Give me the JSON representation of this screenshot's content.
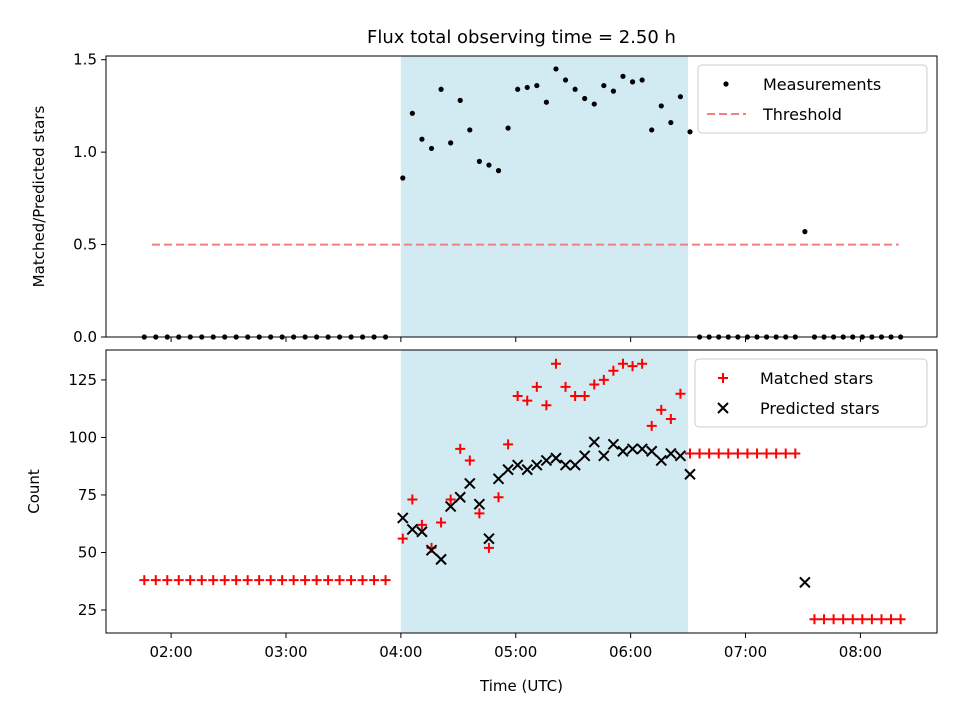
{
  "chart_data": [
    {
      "type": "scatter",
      "title": "Flux total observing time = 2.50 h",
      "xlabel": "",
      "ylabel": "Matched/Predicted stars",
      "xlim": [
        "01:26",
        "08:40"
      ],
      "ylim": [
        0,
        1.52
      ],
      "yticks": [
        0.0,
        0.5,
        1.0,
        1.5
      ],
      "ytick_labels": [
        "0.0",
        "0.5",
        "1.0",
        "1.5"
      ],
      "shaded_span": [
        "04:00",
        "06:30"
      ],
      "shade_color": "#add8e6",
      "legend_position": "upper right",
      "legend_entries": [
        {
          "label": "Measurements",
          "marker": "dot",
          "color": "#000000"
        },
        {
          "label": "Threshold",
          "marker": "dashed-line",
          "color": "#f08080"
        }
      ],
      "threshold": {
        "name": "Threshold",
        "value": 0.5,
        "x": [
          "01:50",
          "08:20"
        ],
        "color": "#f08080"
      },
      "series": [
        {
          "name": "Measurements",
          "color": "#000000",
          "marker": "dot",
          "points": [
            [
              "01:46",
              0
            ],
            [
              "01:52",
              0
            ],
            [
              "01:58",
              0
            ],
            [
              "02:04",
              0
            ],
            [
              "02:10",
              0
            ],
            [
              "02:16",
              0
            ],
            [
              "02:22",
              0
            ],
            [
              "02:28",
              0
            ],
            [
              "02:34",
              0
            ],
            [
              "02:40",
              0
            ],
            [
              "02:46",
              0
            ],
            [
              "02:52",
              0
            ],
            [
              "02:58",
              0
            ],
            [
              "03:04",
              0
            ],
            [
              "03:10",
              0
            ],
            [
              "03:16",
              0
            ],
            [
              "03:22",
              0
            ],
            [
              "03:28",
              0
            ],
            [
              "03:34",
              0
            ],
            [
              "03:40",
              0
            ],
            [
              "03:46",
              0
            ],
            [
              "03:52",
              0
            ],
            [
              "04:01",
              0.86
            ],
            [
              "04:06",
              1.21
            ],
            [
              "04:11",
              1.07
            ],
            [
              "04:16",
              1.02
            ],
            [
              "04:21",
              1.34
            ],
            [
              "04:26",
              1.05
            ],
            [
              "04:31",
              1.28
            ],
            [
              "04:36",
              1.12
            ],
            [
              "04:41",
              0.95
            ],
            [
              "04:46",
              0.93
            ],
            [
              "04:51",
              0.9
            ],
            [
              "04:56",
              1.13
            ],
            [
              "05:01",
              1.34
            ],
            [
              "05:06",
              1.35
            ],
            [
              "05:11",
              1.36
            ],
            [
              "05:16",
              1.27
            ],
            [
              "05:21",
              1.45
            ],
            [
              "05:26",
              1.39
            ],
            [
              "05:31",
              1.34
            ],
            [
              "05:36",
              1.29
            ],
            [
              "05:41",
              1.26
            ],
            [
              "05:46",
              1.36
            ],
            [
              "05:51",
              1.33
            ],
            [
              "05:56",
              1.41
            ],
            [
              "06:01",
              1.38
            ],
            [
              "06:06",
              1.39
            ],
            [
              "06:11",
              1.12
            ],
            [
              "06:16",
              1.25
            ],
            [
              "06:21",
              1.16
            ],
            [
              "06:26",
              1.3
            ],
            [
              "06:31",
              1.11
            ],
            [
              "06:36",
              0
            ],
            [
              "06:41",
              0
            ],
            [
              "06:46",
              0
            ],
            [
              "06:51",
              0
            ],
            [
              "06:56",
              0
            ],
            [
              "07:01",
              0
            ],
            [
              "07:06",
              0
            ],
            [
              "07:11",
              0
            ],
            [
              "07:16",
              0
            ],
            [
              "07:21",
              0
            ],
            [
              "07:26",
              0
            ],
            [
              "07:31",
              0.57
            ],
            [
              "07:36",
              0
            ],
            [
              "07:41",
              0
            ],
            [
              "07:46",
              0
            ],
            [
              "07:51",
              0
            ],
            [
              "07:56",
              0
            ],
            [
              "08:01",
              0
            ],
            [
              "08:06",
              0
            ],
            [
              "08:11",
              0
            ],
            [
              "08:16",
              0
            ],
            [
              "08:21",
              0
            ]
          ]
        }
      ]
    },
    {
      "type": "scatter",
      "title": "",
      "xlabel": "Time (UTC)",
      "ylabel": "Count",
      "xlim": [
        "01:26",
        "08:40"
      ],
      "ylim": [
        15,
        138
      ],
      "xticks": [
        "02:00",
        "03:00",
        "04:00",
        "05:00",
        "06:00",
        "07:00",
        "08:00"
      ],
      "yticks": [
        25,
        50,
        75,
        100,
        125
      ],
      "ytick_labels": [
        "25",
        "50",
        "75",
        "100",
        "125"
      ],
      "shaded_span": [
        "04:00",
        "06:30"
      ],
      "shade_color": "#add8e6",
      "legend_position": "upper right",
      "legend_entries": [
        {
          "label": "Matched stars",
          "marker": "plus",
          "color": "#ff0000"
        },
        {
          "label": "Predicted stars",
          "marker": "x",
          "color": "#000000"
        }
      ],
      "series": [
        {
          "name": "Matched stars",
          "color": "#ff0000",
          "marker": "plus",
          "points": [
            [
              "01:46",
              38
            ],
            [
              "01:52",
              38
            ],
            [
              "01:58",
              38
            ],
            [
              "02:04",
              38
            ],
            [
              "02:10",
              38
            ],
            [
              "02:16",
              38
            ],
            [
              "02:22",
              38
            ],
            [
              "02:28",
              38
            ],
            [
              "02:34",
              38
            ],
            [
              "02:40",
              38
            ],
            [
              "02:46",
              38
            ],
            [
              "02:52",
              38
            ],
            [
              "02:58",
              38
            ],
            [
              "03:04",
              38
            ],
            [
              "03:10",
              38
            ],
            [
              "03:16",
              38
            ],
            [
              "03:22",
              38
            ],
            [
              "03:28",
              38
            ],
            [
              "03:34",
              38
            ],
            [
              "03:40",
              38
            ],
            [
              "03:46",
              38
            ],
            [
              "03:52",
              38
            ],
            [
              "04:01",
              56
            ],
            [
              "04:06",
              73
            ],
            [
              "04:11",
              62
            ],
            [
              "04:16",
              52
            ],
            [
              "04:21",
              63
            ],
            [
              "04:26",
              73
            ],
            [
              "04:31",
              95
            ],
            [
              "04:36",
              90
            ],
            [
              "04:41",
              67
            ],
            [
              "04:46",
              52
            ],
            [
              "04:51",
              74
            ],
            [
              "04:56",
              97
            ],
            [
              "05:01",
              118
            ],
            [
              "05:06",
              116
            ],
            [
              "05:11",
              122
            ],
            [
              "05:16",
              114
            ],
            [
              "05:21",
              132
            ],
            [
              "05:26",
              122
            ],
            [
              "05:31",
              118
            ],
            [
              "05:36",
              118
            ],
            [
              "05:41",
              123
            ],
            [
              "05:46",
              125
            ],
            [
              "05:51",
              129
            ],
            [
              "05:56",
              132
            ],
            [
              "06:01",
              131
            ],
            [
              "06:06",
              132
            ],
            [
              "06:11",
              105
            ],
            [
              "06:16",
              112
            ],
            [
              "06:21",
              108
            ],
            [
              "06:26",
              119
            ],
            [
              "06:31",
              93
            ],
            [
              "06:36",
              93
            ],
            [
              "06:41",
              93
            ],
            [
              "06:46",
              93
            ],
            [
              "06:51",
              93
            ],
            [
              "06:56",
              93
            ],
            [
              "07:01",
              93
            ],
            [
              "07:06",
              93
            ],
            [
              "07:11",
              93
            ],
            [
              "07:16",
              93
            ],
            [
              "07:21",
              93
            ],
            [
              "07:26",
              93
            ],
            [
              "07:36",
              21
            ],
            [
              "07:41",
              21
            ],
            [
              "07:46",
              21
            ],
            [
              "07:51",
              21
            ],
            [
              "07:56",
              21
            ],
            [
              "08:01",
              21
            ],
            [
              "08:06",
              21
            ],
            [
              "08:11",
              21
            ],
            [
              "08:16",
              21
            ],
            [
              "08:21",
              21
            ]
          ]
        },
        {
          "name": "Predicted stars",
          "color": "#000000",
          "marker": "x",
          "points": [
            [
              "04:01",
              65
            ],
            [
              "04:06",
              60
            ],
            [
              "04:11",
              59
            ],
            [
              "04:16",
              51
            ],
            [
              "04:21",
              47
            ],
            [
              "04:26",
              70
            ],
            [
              "04:31",
              74
            ],
            [
              "04:36",
              80
            ],
            [
              "04:41",
              71
            ],
            [
              "04:46",
              56
            ],
            [
              "04:51",
              82
            ],
            [
              "04:56",
              86
            ],
            [
              "05:01",
              88
            ],
            [
              "05:06",
              86
            ],
            [
              "05:11",
              88
            ],
            [
              "05:16",
              90
            ],
            [
              "05:21",
              91
            ],
            [
              "05:26",
              88
            ],
            [
              "05:31",
              88
            ],
            [
              "05:36",
              92
            ],
            [
              "05:41",
              98
            ],
            [
              "05:46",
              92
            ],
            [
              "05:51",
              97
            ],
            [
              "05:56",
              94
            ],
            [
              "06:01",
              95
            ],
            [
              "06:06",
              95
            ],
            [
              "06:11",
              94
            ],
            [
              "06:16",
              90
            ],
            [
              "06:21",
              93
            ],
            [
              "06:26",
              92
            ],
            [
              "06:31",
              84
            ],
            [
              "07:31",
              37
            ]
          ]
        }
      ]
    }
  ]
}
